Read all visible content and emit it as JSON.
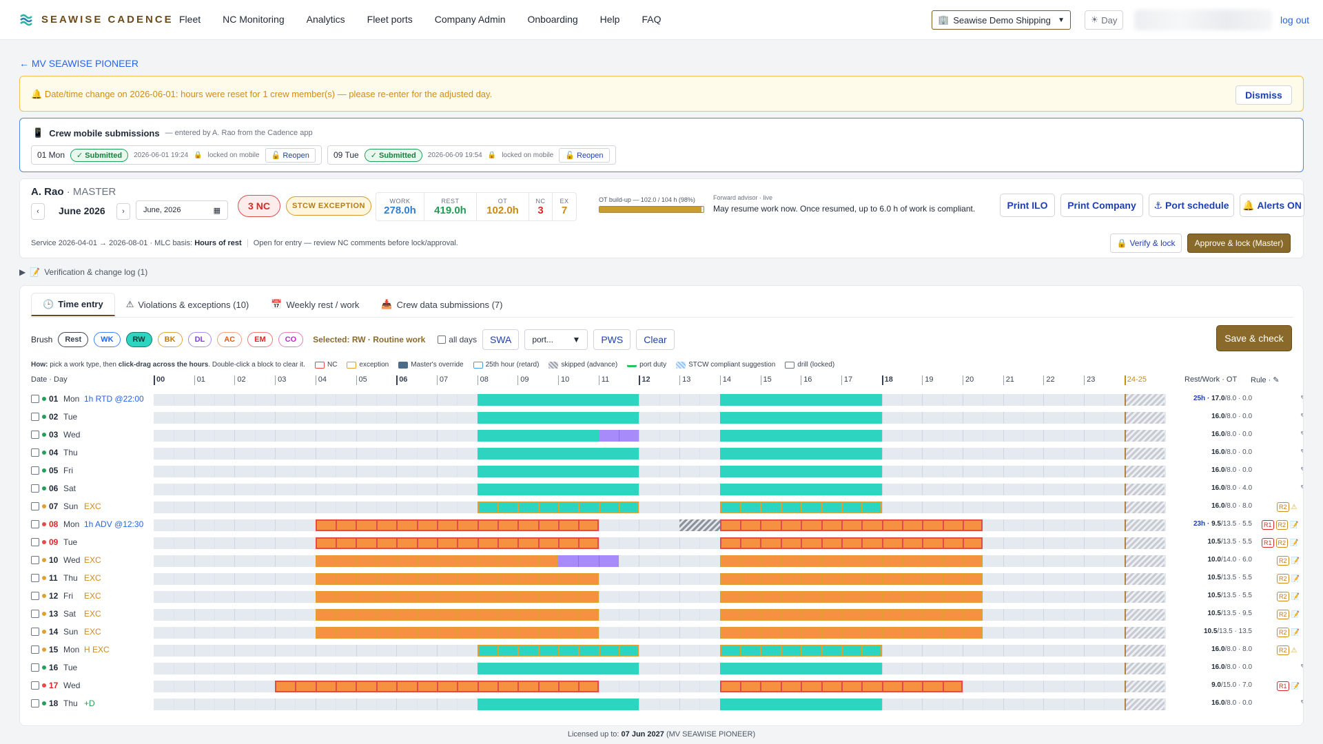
{
  "app": {
    "brand": "SEAWISE CADENCE"
  },
  "nav": [
    "Fleet",
    "NC Monitoring",
    "Analytics",
    "Fleet ports",
    "Company Admin",
    "Onboarding",
    "Help",
    "FAQ"
  ],
  "company_select": "Seawise Demo Shipping",
  "day_toggle": "Day",
  "logout": "log out",
  "back_link": "← MV SEAWISE PIONEER",
  "banner": {
    "message": "Date/time change on 2026-06-01: hours were reset for 1 crew member(s) — please re-enter for the adjusted day.",
    "dismiss": "Dismiss"
  },
  "mobile": {
    "title": "Crew mobile submissions",
    "subtitle": "— entered by A. Rao from the Cadence app",
    "items": [
      {
        "day": "01 Mon",
        "status": "✓ Submitted",
        "ts": "2026-06-01 19:24",
        "lock": "locked on mobile",
        "action": "Reopen"
      },
      {
        "day": "09 Tue",
        "status": "✓ Submitted",
        "ts": "2026-06-09 19:54",
        "lock": "locked on mobile",
        "action": "Reopen"
      }
    ]
  },
  "crew": {
    "name": "A. Rao",
    "rank": "· MASTER",
    "month": "June 2026",
    "month_input": "June, 2026",
    "nc_badge": "3 NC",
    "stcw_badge": "STCW EXCEPTION",
    "stats": [
      {
        "k": "WORK",
        "v": "278.0h",
        "color": "#2f7fd1"
      },
      {
        "k": "REST",
        "v": "419.0h",
        "color": "#1f9d55"
      },
      {
        "k": "OT",
        "v": "102.0h",
        "color": "#c98a12"
      },
      {
        "k": "NC",
        "v": "3",
        "color": "#dc2626"
      },
      {
        "k": "EX",
        "v": "7",
        "color": "#c98a12"
      }
    ],
    "ot_label": "OT build-up — 102.0 / 104 h (98%)",
    "ot_fraction": 0.98,
    "advisor_label": "Forward advisor · live",
    "advisor_text": "May resume work now. Once resumed, up to 6.0 h of work is compliant.",
    "actions": [
      "Print ILO",
      "Print Company",
      "Port schedule",
      "Alerts ON"
    ],
    "service_text": "Service 2026-04-01 → 2026-08-01 · MLC basis: ",
    "service_basis": "Hours of rest",
    "service_note": "Open for entry — review NC comments before lock/approval.",
    "verify": "Verify & lock",
    "approve": "Approve & lock (Master)"
  },
  "verification_log": "Verification & change log (1)",
  "tabs": [
    "Time entry",
    "Violations & exceptions (10)",
    "Weekly rest / work",
    "Crew data submissions (7)"
  ],
  "brush": {
    "label": "Brush",
    "pills": [
      {
        "code": "Rest",
        "border": "#374151",
        "color": "#374151",
        "bg": "#fff"
      },
      {
        "code": "WK",
        "border": "#3b82f6",
        "color": "#2563eb",
        "bg": "#fff"
      },
      {
        "code": "RW",
        "border": "#0f766e",
        "color": "#0b3b36",
        "bg": "#2dd4bf"
      },
      {
        "code": "BK",
        "border": "#e5a23a",
        "color": "#c2790f",
        "bg": "#fff"
      },
      {
        "code": "DL",
        "border": "#a78bfa",
        "color": "#7c3aed",
        "bg": "#fff"
      },
      {
        "code": "AC",
        "border": "#f59e7a",
        "color": "#ea580c",
        "bg": "#fff"
      },
      {
        "code": "EM",
        "border": "#f87171",
        "color": "#dc2626",
        "bg": "#fff"
      },
      {
        "code": "CO",
        "border": "#e879b9",
        "color": "#c026d3",
        "bg": "#fff"
      }
    ],
    "selected": "Selected: RW · Routine work",
    "all_days": "all days",
    "swa": "SWA",
    "port": "port...",
    "pws": "PWS",
    "clear": "Clear",
    "save": "Save & check"
  },
  "how": {
    "prefix": "How:",
    "text1": " pick a work type, then ",
    "bold": "click-drag across the hours",
    "text2": ". Double-click a block to clear it.",
    "legend": [
      "NC",
      "exception",
      "Master's override",
      "25th hour (retard)",
      "skipped (advance)",
      "port duty",
      "STCW compliant suggestion",
      "drill (locked)"
    ]
  },
  "grid_headers": {
    "date": "Date · Day",
    "hours": [
      "00",
      "01",
      "02",
      "03",
      "04",
      "05",
      "06",
      "07",
      "08",
      "09",
      "10",
      "11",
      "12",
      "13",
      "14",
      "15",
      "16",
      "17",
      "18",
      "19",
      "20",
      "21",
      "22",
      "23",
      "24-25"
    ],
    "restwork": "Rest/Work · OT",
    "rule": "Rule ·"
  },
  "rows": [
    {
      "d": "01",
      "wd": "Mon",
      "extra": "1h RTD @22:00",
      "extraColor": "#2563eb",
      "dot": "#22a05a",
      "numColor": "#1f2937",
      "type": "rw",
      "blocks": [
        [
          8,
          12
        ],
        [
          14,
          18
        ]
      ],
      "rw_a": "25h · ",
      "rw_b": "17.0",
      "rw_c": "/8.0 · 0.0",
      "rwColor": "#1e40af",
      "rules": []
    },
    {
      "d": "02",
      "wd": "Tue",
      "extra": "",
      "dot": "#22a05a",
      "numColor": "#1f2937",
      "type": "rw",
      "blocks": [
        [
          8,
          12
        ],
        [
          14,
          18
        ]
      ],
      "rw_a": "",
      "rw_b": "16.0",
      "rw_c": "/8.0 · 0.0",
      "rules": []
    },
    {
      "d": "03",
      "wd": "Wed",
      "extra": "",
      "dot": "#22a05a",
      "numColor": "#1f2937",
      "type": "rw",
      "blocks": [
        [
          8,
          11
        ],
        [
          14,
          18
        ]
      ],
      "dl": [
        [
          11,
          12
        ]
      ],
      "rw_a": "",
      "rw_b": "16.0",
      "rw_c": "/8.0 · 0.0",
      "rules": []
    },
    {
      "d": "04",
      "wd": "Thu",
      "extra": "",
      "dot": "#22a05a",
      "numColor": "#1f2937",
      "type": "rw",
      "blocks": [
        [
          8,
          12
        ],
        [
          14,
          18
        ]
      ],
      "rw_a": "",
      "rw_b": "16.0",
      "rw_c": "/8.0 · 0.0",
      "rules": []
    },
    {
      "d": "05",
      "wd": "Fri",
      "extra": "",
      "dot": "#22a05a",
      "numColor": "#1f2937",
      "type": "rw",
      "blocks": [
        [
          8,
          12
        ],
        [
          14,
          18
        ]
      ],
      "rw_a": "",
      "rw_b": "16.0",
      "rw_c": "/8.0 · 0.0",
      "rules": []
    },
    {
      "d": "06",
      "wd": "Sat",
      "extra": "",
      "dot": "#22a05a",
      "numColor": "#1f2937",
      "type": "rw",
      "blocks": [
        [
          8,
          12
        ],
        [
          14,
          18
        ]
      ],
      "rw_a": "",
      "rw_b": "16.0",
      "rw_c": "/8.0 · 4.0",
      "rules": []
    },
    {
      "d": "07",
      "wd": "Sun",
      "extra": "EXC",
      "extraColor": "#d08a1a",
      "dot": "#e0a030",
      "numColor": "#1f2937",
      "type": "exc",
      "blocks": [
        [
          8,
          12
        ],
        [
          14,
          18
        ]
      ],
      "rw_a": "",
      "rw_b": "16.0",
      "rw_c": "/8.0 · 8.0",
      "rules": [
        "R2"
      ],
      "warn": true
    },
    {
      "d": "08",
      "wd": "Mon",
      "extra": "1h ADV @12:30",
      "extraColor": "#2563eb",
      "dot": "#e24b4b",
      "numColor": "#dc2626",
      "type": "nc",
      "blocks": [
        [
          4,
          11
        ],
        [
          14,
          20.5
        ]
      ],
      "skip": [
        [
          13,
          14
        ]
      ],
      "rw_a": "23h · ",
      "rw_b": "9.5",
      "rw_c": "/13.5 · 5.5",
      "rwColor": "#1e40af",
      "rules": [
        "R1",
        "R2"
      ]
    },
    {
      "d": "09",
      "wd": "Tue",
      "extra": "",
      "dot": "#e24b4b",
      "numColor": "#dc2626",
      "type": "nc",
      "blocks": [
        [
          4,
          11
        ],
        [
          14,
          20.5
        ]
      ],
      "rw_a": "",
      "rw_b": "10.5",
      "rw_c": "/13.5 · 5.5",
      "rules": [
        "R1",
        "R2"
      ]
    },
    {
      "d": "10",
      "wd": "Wed",
      "extra": "EXC",
      "extraColor": "#d08a1a",
      "dot": "#e0a030",
      "numColor": "#1f2937",
      "type": "exc2",
      "blocks": [
        [
          4,
          10
        ],
        [
          14,
          20.5
        ]
      ],
      "dl": [
        [
          10,
          11.5
        ]
      ],
      "rw_a": "",
      "rw_b": "10.0",
      "rw_c": "/14.0 · 6.0",
      "rules": [
        "R2"
      ]
    },
    {
      "d": "11",
      "wd": "Thu",
      "extra": "EXC",
      "extraColor": "#d08a1a",
      "dot": "#e0a030",
      "numColor": "#1f2937",
      "type": "exc2",
      "blocks": [
        [
          4,
          11
        ],
        [
          14,
          20.5
        ]
      ],
      "rw_a": "",
      "rw_b": "10.5",
      "rw_c": "/13.5 · 5.5",
      "rules": [
        "R2"
      ]
    },
    {
      "d": "12",
      "wd": "Fri",
      "extra": "EXC",
      "extraColor": "#d08a1a",
      "dot": "#e0a030",
      "numColor": "#1f2937",
      "type": "exc2",
      "blocks": [
        [
          4,
          11
        ],
        [
          14,
          20.5
        ]
      ],
      "rw_a": "",
      "rw_b": "10.5",
      "rw_c": "/13.5 · 5.5",
      "rules": [
        "R2"
      ]
    },
    {
      "d": "13",
      "wd": "Sat",
      "extra": "EXC",
      "extraColor": "#d08a1a",
      "dot": "#e0a030",
      "numColor": "#1f2937",
      "type": "exc2",
      "blocks": [
        [
          4,
          11
        ],
        [
          14,
          20.5
        ]
      ],
      "rw_a": "",
      "rw_b": "10.5",
      "rw_c": "/13.5 · 9.5",
      "rules": [
        "R2"
      ]
    },
    {
      "d": "14",
      "wd": "Sun",
      "extra": "EXC",
      "extraColor": "#d08a1a",
      "dot": "#e0a030",
      "numColor": "#1f2937",
      "type": "exc2",
      "blocks": [
        [
          4,
          11
        ],
        [
          14,
          20.5
        ]
      ],
      "rw_a": "",
      "rw_b": "10.5",
      "rw_c": "/13.5 · 13.5",
      "rules": [
        "R2"
      ]
    },
    {
      "d": "15",
      "wd": "Mon",
      "extra": "H EXC",
      "extraColor": "#d08a1a",
      "dot": "#e0a030",
      "numColor": "#1f2937",
      "type": "exc",
      "blocks": [
        [
          8,
          12
        ],
        [
          14,
          18
        ]
      ],
      "rw_a": "",
      "rw_b": "16.0",
      "rw_c": "/8.0 · 8.0",
      "rules": [
        "R2"
      ],
      "warn": true
    },
    {
      "d": "16",
      "wd": "Tue",
      "extra": "",
      "dot": "#22a05a",
      "numColor": "#1f2937",
      "type": "rw",
      "blocks": [
        [
          8,
          12
        ],
        [
          14,
          18
        ]
      ],
      "rw_a": "",
      "rw_b": "16.0",
      "rw_c": "/8.0 · 0.0",
      "rules": []
    },
    {
      "d": "17",
      "wd": "Wed",
      "extra": "",
      "dot": "#e24b4b",
      "numColor": "#dc2626",
      "type": "nc",
      "blocks": [
        [
          3,
          11
        ],
        [
          14,
          20
        ]
      ],
      "rw_a": "",
      "rw_b": "9.0",
      "rw_c": "/15.0 · 7.0",
      "rules": [
        "R1"
      ]
    },
    {
      "d": "18",
      "wd": "Thu",
      "extra": "+D",
      "extraColor": "#22a05a",
      "dot": "#22a05a",
      "numColor": "#1f2937",
      "type": "rw",
      "blocks": [
        [
          8,
          12
        ],
        [
          14,
          18
        ]
      ],
      "rw_a": "",
      "rw_b": "16.0",
      "rw_c": "/8.0 · 0.0",
      "rules": []
    }
  ],
  "footer": {
    "prefix": "Licensed up to: ",
    "date": "07 Jun 2027",
    "vessel": " (MV SEAWISE PIONEER)"
  }
}
